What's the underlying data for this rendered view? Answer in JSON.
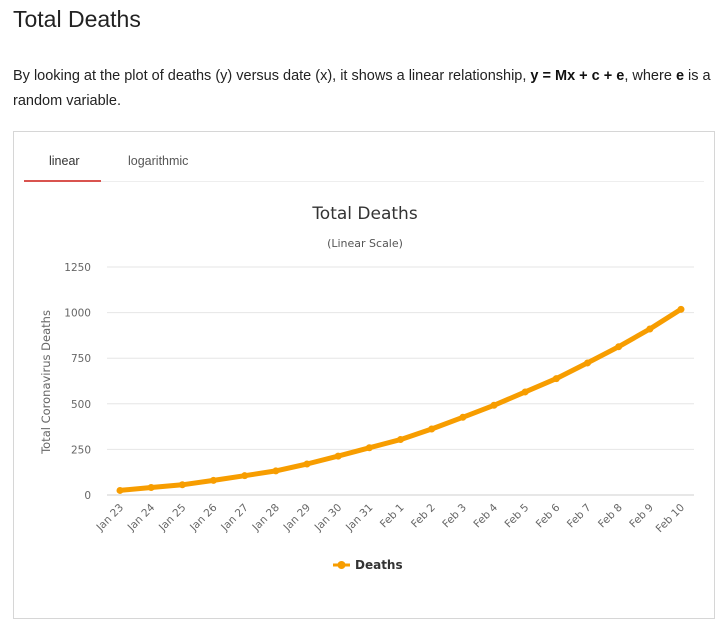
{
  "section": {
    "heading": "Total Deaths",
    "intro_part1": "By looking at the plot of deaths (y) versus date (x), it shows a linear relationship, ",
    "intro_formula": "y = Mx + c + e",
    "intro_part2": ", where ",
    "intro_var": "e",
    "intro_part3": " is a random variable."
  },
  "tabs": [
    {
      "label": "linear",
      "active": true
    },
    {
      "label": "logarithmic",
      "active": false
    }
  ],
  "colors": {
    "series": "#f79d00",
    "grid": "#e6e6e6",
    "tab_active_underline": "#d9534f"
  },
  "chart_data": {
    "type": "line",
    "title": "Total Deaths",
    "subtitle": "(Linear Scale)",
    "ylabel": "Total Coronavirus Deaths",
    "xlabel": "",
    "ylim": [
      0,
      1250
    ],
    "yticks": [
      0,
      250,
      500,
      750,
      1000,
      1250
    ],
    "grid": true,
    "legend_position": "bottom-center",
    "categories": [
      "Jan 23",
      "Jan 24",
      "Jan 25",
      "Jan 26",
      "Jan 27",
      "Jan 28",
      "Jan 29",
      "Jan 30",
      "Jan 31",
      "Feb 1",
      "Feb 2",
      "Feb 3",
      "Feb 4",
      "Feb 5",
      "Feb 6",
      "Feb 7",
      "Feb 8",
      "Feb 9",
      "Feb 10"
    ],
    "series": [
      {
        "name": "Deaths",
        "values": [
          25,
          41,
          56,
          80,
          106,
          132,
          170,
          213,
          259,
          304,
          362,
          426,
          492,
          565,
          638,
          724,
          813,
          910,
          1018
        ]
      }
    ]
  }
}
